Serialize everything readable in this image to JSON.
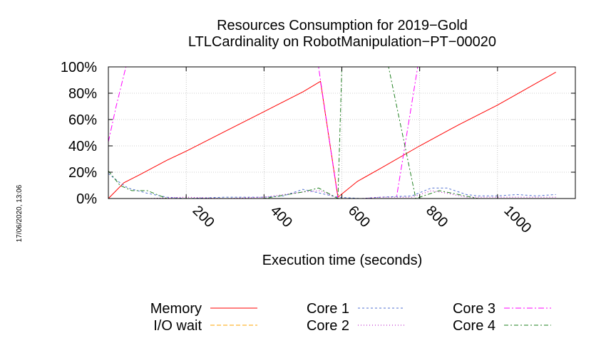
{
  "chart_data": {
    "type": "line",
    "title": "Resources Consumption for 2019−Gold",
    "subtitle": "LTLCardinality on RobotManipulation−PT−00020",
    "xlabel": "Execution time (seconds)",
    "ylabel": "",
    "side_note": "17/06/2020, 13:06",
    "xlim": [
      0,
      1200
    ],
    "ylim": [
      0,
      100
    ],
    "x_ticks": [
      200,
      400,
      600,
      800,
      1000
    ],
    "x_tick_labels": [
      "200",
      "400",
      "600",
      "800",
      "1000"
    ],
    "y_ticks": [
      0,
      20,
      40,
      60,
      80,
      100
    ],
    "y_tick_labels": [
      "0%",
      "20%",
      "40%",
      "60%",
      "80%",
      "100%"
    ],
    "grid": true,
    "legend_position": "bottom",
    "series": [
      {
        "name": "Memory",
        "color": "#ff0000",
        "dash": "",
        "points": [
          [
            0,
            0
          ],
          [
            40,
            12
          ],
          [
            80,
            18
          ],
          [
            150,
            29
          ],
          [
            200,
            36
          ],
          [
            300,
            51
          ],
          [
            400,
            66
          ],
          [
            500,
            81
          ],
          [
            545,
            89
          ],
          [
            590,
            1
          ],
          [
            640,
            13
          ],
          [
            700,
            23
          ],
          [
            800,
            40
          ],
          [
            900,
            56
          ],
          [
            1000,
            71
          ],
          [
            1150,
            96
          ]
        ]
      },
      {
        "name": "I/O wait",
        "color": "#ffa500",
        "dash": "6,3",
        "points": [
          [
            0,
            0
          ],
          [
            1150,
            0
          ]
        ]
      },
      {
        "name": "Core 1",
        "color": "#5070d0",
        "dash": "3,3",
        "points": [
          [
            0,
            19
          ],
          [
            25,
            13
          ],
          [
            50,
            8
          ],
          [
            100,
            4
          ],
          [
            150,
            1
          ],
          [
            200,
            0
          ],
          [
            300,
            1
          ],
          [
            400,
            1
          ],
          [
            450,
            2
          ],
          [
            500,
            7
          ],
          [
            545,
            4
          ],
          [
            590,
            1
          ],
          [
            650,
            0
          ],
          [
            700,
            1
          ],
          [
            780,
            2
          ],
          [
            830,
            8
          ],
          [
            870,
            8
          ],
          [
            920,
            3
          ],
          [
            950,
            2
          ],
          [
            1000,
            2
          ],
          [
            1050,
            3
          ],
          [
            1100,
            2
          ],
          [
            1150,
            3
          ]
        ]
      },
      {
        "name": "Core 2",
        "color": "#b000c0",
        "dash": "1,3",
        "points": [
          [
            0,
            0
          ],
          [
            100,
            0
          ],
          [
            200,
            1
          ],
          [
            300,
            0
          ],
          [
            400,
            1
          ],
          [
            500,
            5
          ],
          [
            545,
            6
          ],
          [
            590,
            0
          ],
          [
            650,
            0
          ],
          [
            700,
            1
          ],
          [
            780,
            1
          ],
          [
            830,
            6
          ],
          [
            870,
            4
          ],
          [
            920,
            1
          ],
          [
            1000,
            1
          ],
          [
            1100,
            1
          ],
          [
            1150,
            1
          ]
        ]
      },
      {
        "name": "Core 3",
        "color": "#ff00ff",
        "dash": "8,3,2,3",
        "points": [
          [
            0,
            43
          ],
          [
            20,
            70
          ],
          [
            45,
            100
          ],
          [
            540,
            100
          ],
          [
            590,
            0
          ],
          [
            740,
            0
          ],
          [
            795,
            100
          ],
          [
            1150,
            100
          ]
        ]
      },
      {
        "name": "Core 4",
        "color": "#208020",
        "dash": "6,3,2,3",
        "points": [
          [
            0,
            21
          ],
          [
            30,
            10
          ],
          [
            60,
            6
          ],
          [
            100,
            6
          ],
          [
            150,
            0
          ],
          [
            300,
            0
          ],
          [
            400,
            0
          ],
          [
            500,
            5
          ],
          [
            540,
            8
          ],
          [
            590,
            0
          ],
          [
            600,
            100
          ],
          [
            720,
            100
          ],
          [
            790,
            0
          ],
          [
            850,
            6
          ],
          [
            900,
            3
          ],
          [
            950,
            0
          ],
          [
            1150,
            0
          ]
        ]
      }
    ]
  }
}
